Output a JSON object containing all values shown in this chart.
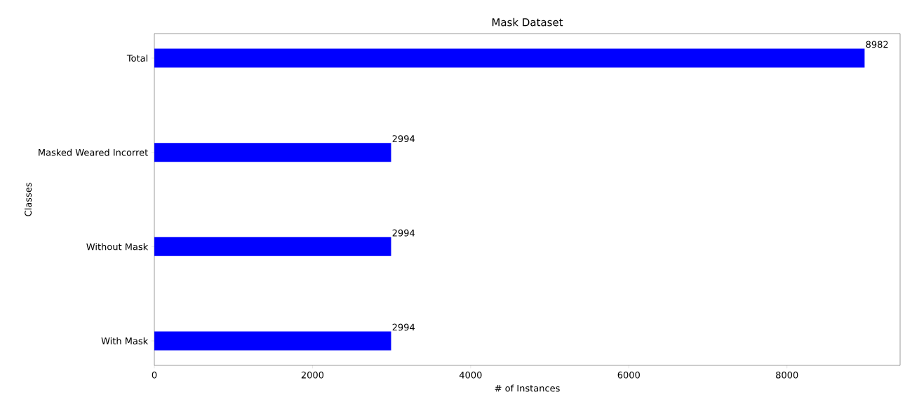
{
  "chart_data": {
    "type": "bar",
    "orientation": "horizontal",
    "title": "Mask Dataset",
    "xlabel": "# of Instances",
    "ylabel": "Classes",
    "categories": [
      "Total",
      "Masked Weared Incorret",
      "Without Mask",
      "With Mask"
    ],
    "values": [
      8982,
      2994,
      2994,
      2994
    ],
    "color": "#0000ff",
    "data_labels": true,
    "xlim": [
      0,
      9431
    ],
    "xticks": [
      0,
      2000,
      4000,
      6000,
      8000
    ]
  }
}
